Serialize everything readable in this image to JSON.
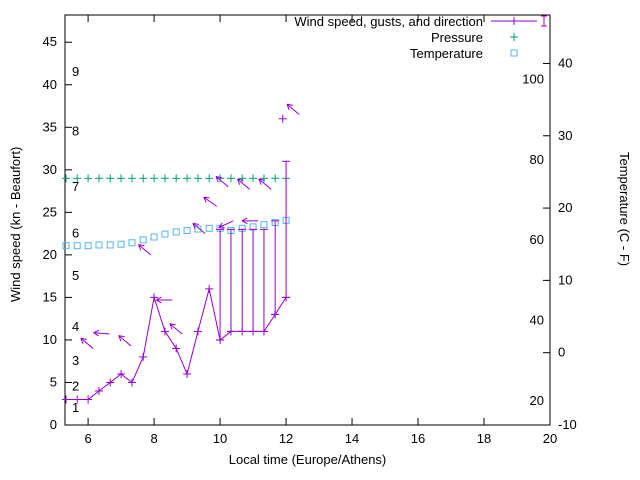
{
  "chart_data": {
    "type": "line",
    "title": "",
    "xlabel": "Local time (Europe/Athens)",
    "ylabel_left": "Wind speed (kn - Beaufort)",
    "ylabel_right": "Temperature (C - F)",
    "x_range": [
      5.3,
      20
    ],
    "x_ticks": [
      6,
      8,
      10,
      12,
      14,
      16,
      18,
      20
    ],
    "y_left_range": [
      0,
      48.2
    ],
    "y_left_ticks": [
      0,
      5,
      10,
      15,
      20,
      25,
      30,
      35,
      40,
      45
    ],
    "beaufort_scale_labels": [
      {
        "label": "1",
        "kn": 2
      },
      {
        "label": "2",
        "kn": 4.5
      },
      {
        "label": "3",
        "kn": 7.5
      },
      {
        "label": "4",
        "kn": 11.5
      },
      {
        "label": "5",
        "kn": 17.5
      },
      {
        "label": "6",
        "kn": 22.5
      },
      {
        "label": "7",
        "kn": 28
      },
      {
        "label": "8",
        "kn": 34.5
      },
      {
        "label": "9",
        "kn": 41.5
      }
    ],
    "y_right_range_C": [
      -10,
      46.7
    ],
    "y_right_ticks_C": [
      -10,
      0,
      10,
      20,
      30,
      40
    ],
    "fahrenheit_labels_F": [
      20,
      40,
      60,
      80,
      100
    ],
    "legend": [
      {
        "label": "Wind speed, gusts, and direction",
        "series": "wind"
      },
      {
        "label": "Pressure",
        "series": "pressure"
      },
      {
        "label": "Temperature",
        "series": "temperature"
      }
    ],
    "colors": {
      "wind": "#9400d3",
      "pressure": "#009e73",
      "temperature": "#56b4e9",
      "axis": "#000000",
      "background": "#ffffff"
    },
    "wind": {
      "t": [
        5.33,
        5.67,
        6,
        6.33,
        6.67,
        7,
        7.33,
        7.67,
        8,
        8.33,
        8.67,
        9,
        9.33,
        9.67,
        10,
        10.33,
        10.67,
        11,
        11.33,
        11.67,
        12
      ],
      "speed_kn": [
        3,
        3,
        3,
        4,
        5,
        6,
        5,
        8,
        15,
        11,
        9,
        6,
        11,
        16,
        10,
        11,
        11,
        11,
        11,
        13,
        15
      ],
      "gust_kn": [
        null,
        null,
        null,
        null,
        null,
        null,
        null,
        null,
        null,
        null,
        null,
        null,
        null,
        null,
        23,
        23,
        23,
        23,
        23,
        24,
        31
      ]
    },
    "latest_gust_marker": {
      "t": 11.9,
      "kn": 36
    },
    "direction_arrows": [
      {
        "t": 6.15,
        "kn": 9,
        "angle_deg": 140
      },
      {
        "t": 6.65,
        "kn": 10.7,
        "angle_deg": 175
      },
      {
        "t": 7.3,
        "kn": 9.3,
        "angle_deg": 140
      },
      {
        "t": 7.9,
        "kn": 20,
        "angle_deg": 140
      },
      {
        "t": 8.55,
        "kn": 14.7,
        "angle_deg": 180
      },
      {
        "t": 8.85,
        "kn": 10.7,
        "angle_deg": 140
      },
      {
        "t": 9.55,
        "kn": 22.5,
        "angle_deg": 140
      },
      {
        "t": 9.9,
        "kn": 25.7,
        "angle_deg": 145
      },
      {
        "t": 10.25,
        "kn": 28,
        "angle_deg": 140
      },
      {
        "t": 10.4,
        "kn": 24,
        "angle_deg": 205
      },
      {
        "t": 10.9,
        "kn": 27.7,
        "angle_deg": 140
      },
      {
        "t": 11.15,
        "kn": 24,
        "angle_deg": 180
      },
      {
        "t": 11.55,
        "kn": 27.7,
        "angle_deg": 140
      },
      {
        "t": 12.4,
        "kn": 36.5,
        "angle_deg": 140
      }
    ],
    "pressure": {
      "t": [
        5.33,
        5.67,
        6,
        6.33,
        6.67,
        7,
        7.33,
        7.67,
        8,
        8.33,
        8.67,
        9,
        9.33,
        9.67,
        10,
        10.33,
        10.67,
        11,
        11.33,
        11.67,
        12
      ],
      "value_on_left_axis": [
        29,
        29,
        29,
        29,
        29,
        29,
        29,
        29,
        29,
        29,
        29,
        29,
        29,
        29,
        29,
        29,
        29,
        29,
        29,
        29,
        29
      ]
    },
    "temperature": {
      "t": [
        5.33,
        5.67,
        6,
        6.33,
        6.67,
        7,
        7.33,
        7.67,
        8,
        8.33,
        8.67,
        9,
        9.33,
        9.67,
        10,
        10.33,
        10.67,
        11,
        11.33,
        11.67,
        12
      ],
      "C": [
        14.8,
        14.8,
        14.8,
        14.9,
        14.9,
        15.0,
        15.2,
        15.6,
        16.0,
        16.4,
        16.7,
        16.9,
        17.1,
        17.2,
        17.2,
        16.9,
        17.2,
        17.4,
        17.7,
        18.0,
        18.3
      ]
    }
  }
}
